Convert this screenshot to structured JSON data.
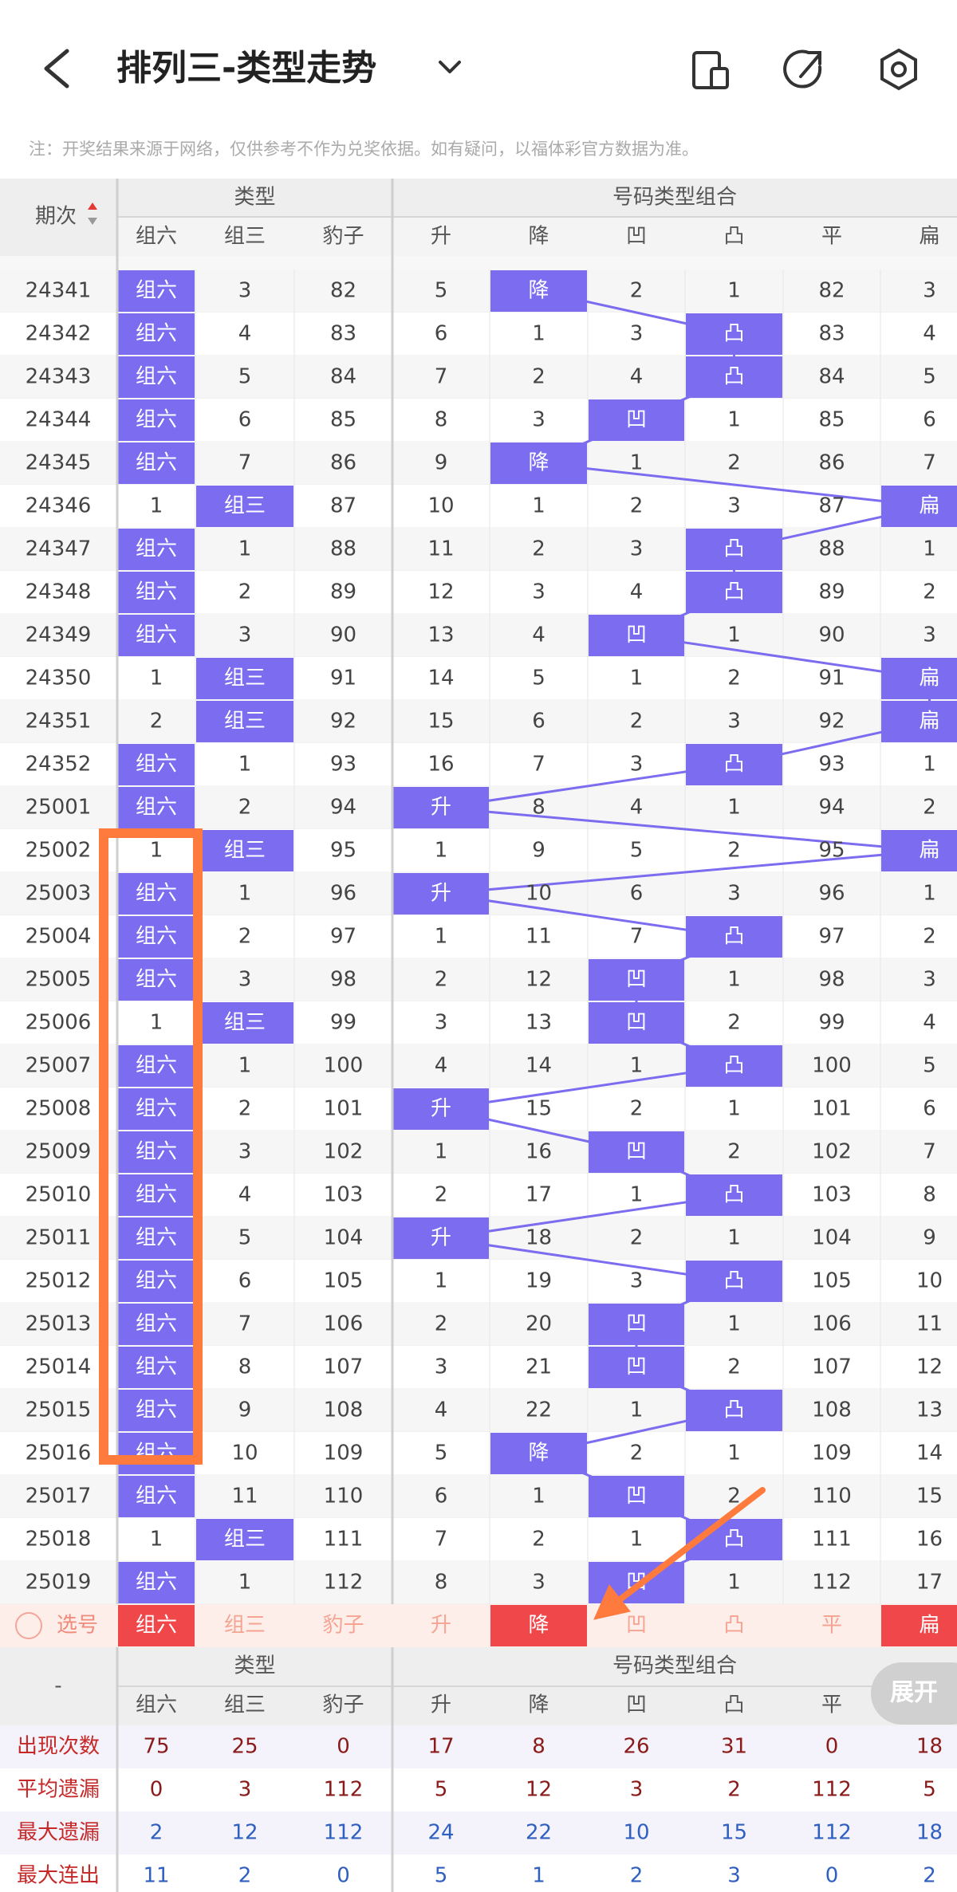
{
  "header": {
    "title": "排列三-类型走势"
  },
  "notice": "注：开奖结果来源于网络，仅供参考不作为兑奖依据。如有疑问，以福体彩官方数据为准。",
  "table": {
    "period_header": "期次",
    "groups": [
      "类型",
      "号码类型组合"
    ],
    "columns": [
      "组六",
      "组三",
      "豹子",
      "升",
      "降",
      "凹",
      "凸",
      "平",
      "扁"
    ],
    "rows": [
      {
        "period": "24341",
        "cells": [
          "组六",
          3,
          82,
          5,
          "降",
          2,
          1,
          82,
          3
        ]
      },
      {
        "period": "24342",
        "cells": [
          "组六",
          4,
          83,
          6,
          1,
          3,
          "凸",
          83,
          4
        ]
      },
      {
        "period": "24343",
        "cells": [
          "组六",
          5,
          84,
          7,
          2,
          4,
          "凸",
          84,
          5
        ]
      },
      {
        "period": "24344",
        "cells": [
          "组六",
          6,
          85,
          8,
          3,
          "凹",
          1,
          85,
          6
        ]
      },
      {
        "period": "24345",
        "cells": [
          "组六",
          7,
          86,
          9,
          "降",
          1,
          2,
          86,
          7
        ]
      },
      {
        "period": "24346",
        "cells": [
          1,
          "组三",
          87,
          10,
          1,
          2,
          3,
          87,
          "扁"
        ]
      },
      {
        "period": "24347",
        "cells": [
          "组六",
          1,
          88,
          11,
          2,
          3,
          "凸",
          88,
          1
        ]
      },
      {
        "period": "24348",
        "cells": [
          "组六",
          2,
          89,
          12,
          3,
          4,
          "凸",
          89,
          2
        ]
      },
      {
        "period": "24349",
        "cells": [
          "组六",
          3,
          90,
          13,
          4,
          "凹",
          1,
          90,
          3
        ]
      },
      {
        "period": "24350",
        "cells": [
          1,
          "组三",
          91,
          14,
          5,
          1,
          2,
          91,
          "扁"
        ]
      },
      {
        "period": "24351",
        "cells": [
          2,
          "组三",
          92,
          15,
          6,
          2,
          3,
          92,
          "扁"
        ]
      },
      {
        "period": "24352",
        "cells": [
          "组六",
          1,
          93,
          16,
          7,
          3,
          "凸",
          93,
          1
        ]
      },
      {
        "period": "25001",
        "cells": [
          "组六",
          2,
          94,
          "升",
          8,
          4,
          1,
          94,
          2
        ]
      },
      {
        "period": "25002",
        "cells": [
          1,
          "组三",
          95,
          1,
          9,
          5,
          2,
          95,
          "扁"
        ]
      },
      {
        "period": "25003",
        "cells": [
          "组六",
          1,
          96,
          "升",
          10,
          6,
          3,
          96,
          1
        ]
      },
      {
        "period": "25004",
        "cells": [
          "组六",
          2,
          97,
          1,
          11,
          7,
          "凸",
          97,
          2
        ]
      },
      {
        "period": "25005",
        "cells": [
          "组六",
          3,
          98,
          2,
          12,
          "凹",
          1,
          98,
          3
        ]
      },
      {
        "period": "25006",
        "cells": [
          1,
          "组三",
          99,
          3,
          13,
          "凹",
          2,
          99,
          4
        ]
      },
      {
        "period": "25007",
        "cells": [
          "组六",
          1,
          100,
          4,
          14,
          1,
          "凸",
          100,
          5
        ]
      },
      {
        "period": "25008",
        "cells": [
          "组六",
          2,
          101,
          "升",
          15,
          2,
          1,
          101,
          6
        ]
      },
      {
        "period": "25009",
        "cells": [
          "组六",
          3,
          102,
          1,
          16,
          "凹",
          2,
          102,
          7
        ]
      },
      {
        "period": "25010",
        "cells": [
          "组六",
          4,
          103,
          2,
          17,
          1,
          "凸",
          103,
          8
        ]
      },
      {
        "period": "25011",
        "cells": [
          "组六",
          5,
          104,
          "升",
          18,
          2,
          1,
          104,
          9
        ]
      },
      {
        "period": "25012",
        "cells": [
          "组六",
          6,
          105,
          1,
          19,
          3,
          "凸",
          105,
          10
        ]
      },
      {
        "period": "25013",
        "cells": [
          "组六",
          7,
          106,
          2,
          20,
          "凹",
          1,
          106,
          11
        ]
      },
      {
        "period": "25014",
        "cells": [
          "组六",
          8,
          107,
          3,
          21,
          "凹",
          2,
          107,
          12
        ]
      },
      {
        "period": "25015",
        "cells": [
          "组六",
          9,
          108,
          4,
          22,
          1,
          "凸",
          108,
          13
        ]
      },
      {
        "period": "25016",
        "cells": [
          "组六",
          10,
          109,
          5,
          "降",
          2,
          1,
          109,
          14
        ]
      },
      {
        "period": "25017",
        "cells": [
          "组六",
          11,
          110,
          6,
          1,
          "凹",
          2,
          110,
          15
        ]
      },
      {
        "period": "25018",
        "cells": [
          1,
          "组三",
          111,
          7,
          2,
          1,
          "凸",
          111,
          16
        ]
      },
      {
        "period": "25019",
        "cells": [
          "组六",
          1,
          112,
          8,
          3,
          "凹",
          1,
          112,
          17
        ]
      }
    ]
  },
  "selection": {
    "label": "选号",
    "selected": [
      true,
      false,
      false,
      false,
      true,
      false,
      false,
      false,
      true
    ]
  },
  "stats": {
    "header": "-",
    "rows": [
      {
        "label": "出现次数",
        "values": [
          75,
          25,
          0,
          17,
          8,
          26,
          31,
          0,
          18
        ]
      },
      {
        "label": "平均遗漏",
        "values": [
          0,
          3,
          112,
          5,
          12,
          3,
          2,
          112,
          5
        ]
      },
      {
        "label": "最大遗漏",
        "values": [
          2,
          12,
          112,
          24,
          22,
          10,
          15,
          112,
          18
        ]
      },
      {
        "label": "最大连出",
        "values": [
          11,
          2,
          0,
          5,
          1,
          2,
          3,
          0,
          2
        ]
      }
    ]
  },
  "expand_button": "展开"
}
